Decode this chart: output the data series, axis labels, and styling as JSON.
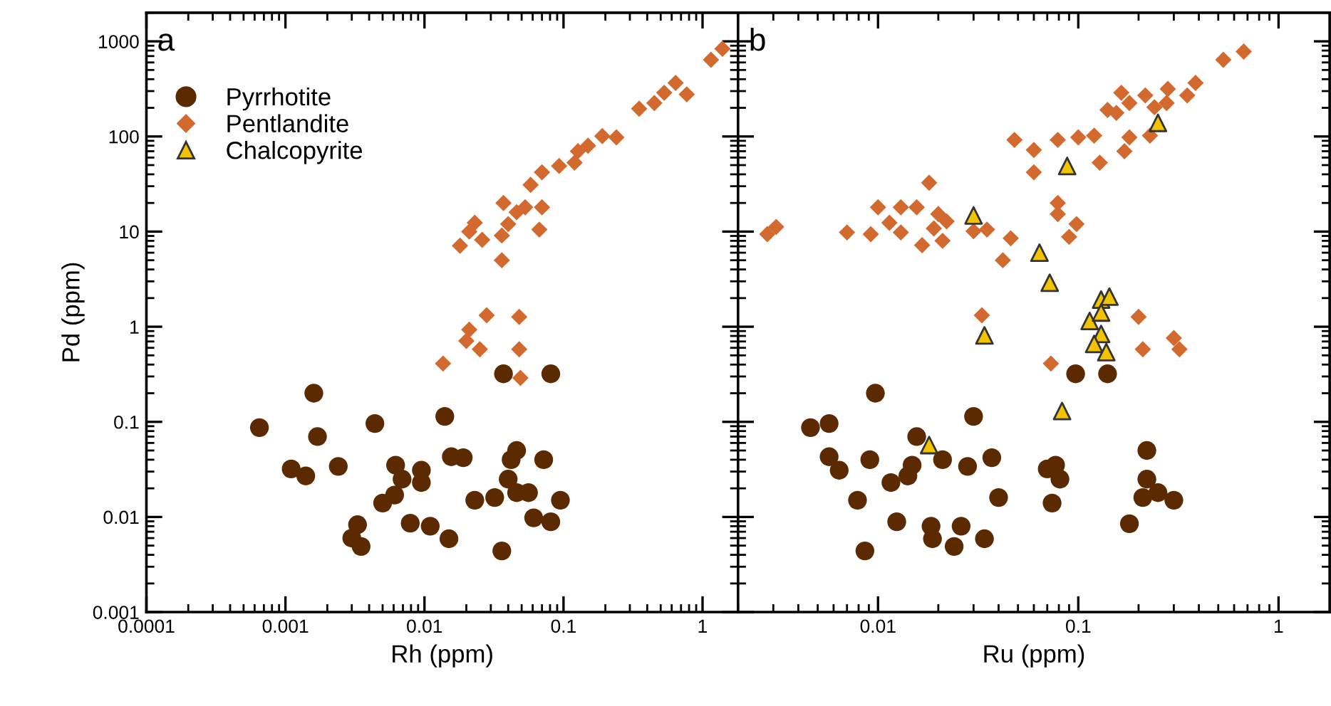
{
  "chart_data": [
    {
      "type": "scatter",
      "xlabel": "Rh (ppm)",
      "ylabel": "Pd (ppm)",
      "log": "xy",
      "grid": false,
      "legend": "top left",
      "annotations": [
        "a"
      ],
      "xlim": [
        0.0001,
        1.8
      ],
      "xticks": [
        0.0001,
        0.001,
        0.01,
        0.1,
        1
      ],
      "ylim": [
        0.001,
        2000
      ],
      "yticks": [
        0.001,
        0.01,
        0.1,
        1,
        10,
        100,
        1000
      ],
      "series": [
        {
          "name": "Pyrrhotite",
          "color": "#5c2a00",
          "marker": "circle",
          "x": [
            0.037,
            0.081,
            0.0016,
            0.00065,
            0.0017,
            0.0044,
            0.014,
            0.0011,
            0.0014,
            0.0024,
            0.0062,
            0.0095,
            0.0095,
            0.0069,
            0.0061,
            0.005,
            0.0156,
            0.019,
            0.046,
            0.042,
            0.072,
            0.04,
            0.046,
            0.056,
            0.023,
            0.032,
            0.095,
            0.061,
            0.081,
            0.0079,
            0.011,
            0.0033,
            0.003,
            0.0035,
            0.015,
            0.036
          ],
          "values": [
            0.32,
            0.32,
            0.2,
            0.087,
            0.07,
            0.096,
            0.114,
            0.032,
            0.027,
            0.034,
            0.035,
            0.031,
            0.023,
            0.025,
            0.017,
            0.014,
            0.043,
            0.042,
            0.05,
            0.04,
            0.04,
            0.025,
            0.018,
            0.018,
            0.015,
            0.016,
            0.015,
            0.0098,
            0.0089,
            0.0086,
            0.008,
            0.0083,
            0.006,
            0.0049,
            0.0059,
            0.0044
          ]
        },
        {
          "name": "Pentlandite",
          "color": "#d2692e",
          "marker": "diamond",
          "x": [
            1.39,
            1.15,
            0.77,
            0.64,
            0.53,
            0.45,
            0.35,
            0.24,
            0.19,
            0.15,
            0.127,
            0.12,
            0.093,
            0.07,
            0.058,
            0.07,
            0.053,
            0.046,
            0.037,
            0.04,
            0.036,
            0.036,
            0.067,
            0.026,
            0.021,
            0.023,
            0.018,
            0.028,
            0.048,
            0.021,
            0.02,
            0.025,
            0.048,
            0.0136,
            0.049
          ],
          "values": [
            835,
            640,
            277,
            366,
            288,
            225,
            196,
            98,
            101,
            80,
            70,
            53,
            49,
            42,
            31,
            18,
            18,
            16,
            20,
            12,
            9.1,
            5.0,
            10.5,
            8.2,
            10,
            12.4,
            7.1,
            1.32,
            1.27,
            0.93,
            0.71,
            0.58,
            0.58,
            0.41,
            0.29
          ]
        },
        {
          "name": "Chalcopyrite",
          "color": "#f2c300",
          "marker": "triangle"
        }
      ]
    },
    {
      "type": "scatter",
      "xlabel": "Ru (ppm)",
      "log": "xy",
      "grid": false,
      "tick_labels": "x",
      "annotations": [
        "b"
      ],
      "xlim": [
        0.002,
        1.8
      ],
      "xticks": [
        0.01,
        0.1,
        1
      ],
      "ylim": [
        0.001,
        2000
      ],
      "yticks": [
        0.001,
        0.01,
        0.1,
        1,
        10,
        100,
        1000
      ],
      "series": [
        {
          "color": "#5c2a00",
          "marker": "circle",
          "x": [
            0.097,
            0.14,
            0.0097,
            0.0046,
            0.0057,
            0.03,
            0.0156,
            0.0057,
            0.0064,
            0.0091,
            0.0148,
            0.0141,
            0.0116,
            0.021,
            0.028,
            0.037,
            0.04,
            0.07,
            0.077,
            0.081,
            0.074,
            0.0079,
            0.0124,
            0.0184,
            0.0187,
            0.026,
            0.024,
            0.034,
            0.0086,
            0.22,
            0.22,
            0.25,
            0.21,
            0.3,
            0.18
          ],
          "values": [
            0.32,
            0.32,
            0.2,
            0.087,
            0.096,
            0.114,
            0.07,
            0.043,
            0.031,
            0.04,
            0.035,
            0.027,
            0.023,
            0.04,
            0.034,
            0.042,
            0.016,
            0.032,
            0.035,
            0.025,
            0.014,
            0.015,
            0.0089,
            0.008,
            0.0059,
            0.008,
            0.0049,
            0.0059,
            0.0044,
            0.05,
            0.025,
            0.018,
            0.016,
            0.015,
            0.0085
          ]
        },
        {
          "color": "#d2692e",
          "marker": "diamond",
          "x": [
            0.67,
            0.53,
            0.385,
            0.35,
            0.28,
            0.276,
            0.216,
            0.24,
            0.18,
            0.164,
            0.155,
            0.14,
            0.228,
            0.18,
            0.17,
            0.12,
            0.1,
            0.128,
            0.079,
            0.06,
            0.048,
            0.06,
            0.018,
            0.01,
            0.013,
            0.0156,
            0.02,
            0.022,
            0.0114,
            0.019,
            0.013,
            0.021,
            0.0166,
            0.0092,
            0.007,
            0.0031,
            0.0028,
            0.03,
            0.035,
            0.046,
            0.042,
            0.079,
            0.079,
            0.098,
            0.09,
            0.033,
            0.2,
            0.21,
            0.3,
            0.32,
            0.073
          ],
          "values": [
            780,
            640,
            366,
            270,
            316,
            225,
            270,
            203,
            225,
            288,
            177,
            190,
            102,
            98,
            70,
            102,
            98,
            53,
            92,
            72,
            92,
            42,
            32.6,
            18,
            18,
            18,
            15.3,
            12.8,
            12.4,
            10.8,
            9.8,
            8,
            7.2,
            9.4,
            9.8,
            11.2,
            9.4,
            10.1,
            10.5,
            8.5,
            5.0,
            20,
            15.3,
            12,
            8.8,
            1.32,
            1.27,
            0.58,
            0.76,
            0.58,
            0.41
          ]
        },
        {
          "color": "#f2c300",
          "marker": "triangle",
          "x": [
            0.25,
            0.088,
            0.03,
            0.064,
            0.072,
            0.13,
            0.143,
            0.114,
            0.13,
            0.13,
            0.12,
            0.138,
            0.034,
            0.083,
            0.018
          ],
          "values": [
            139,
            49,
            14.8,
            6.0,
            2.9,
            1.93,
            2.07,
            1.15,
            1.41,
            0.84,
            0.66,
            0.54,
            0.81,
            0.13,
            0.057
          ]
        }
      ]
    }
  ]
}
